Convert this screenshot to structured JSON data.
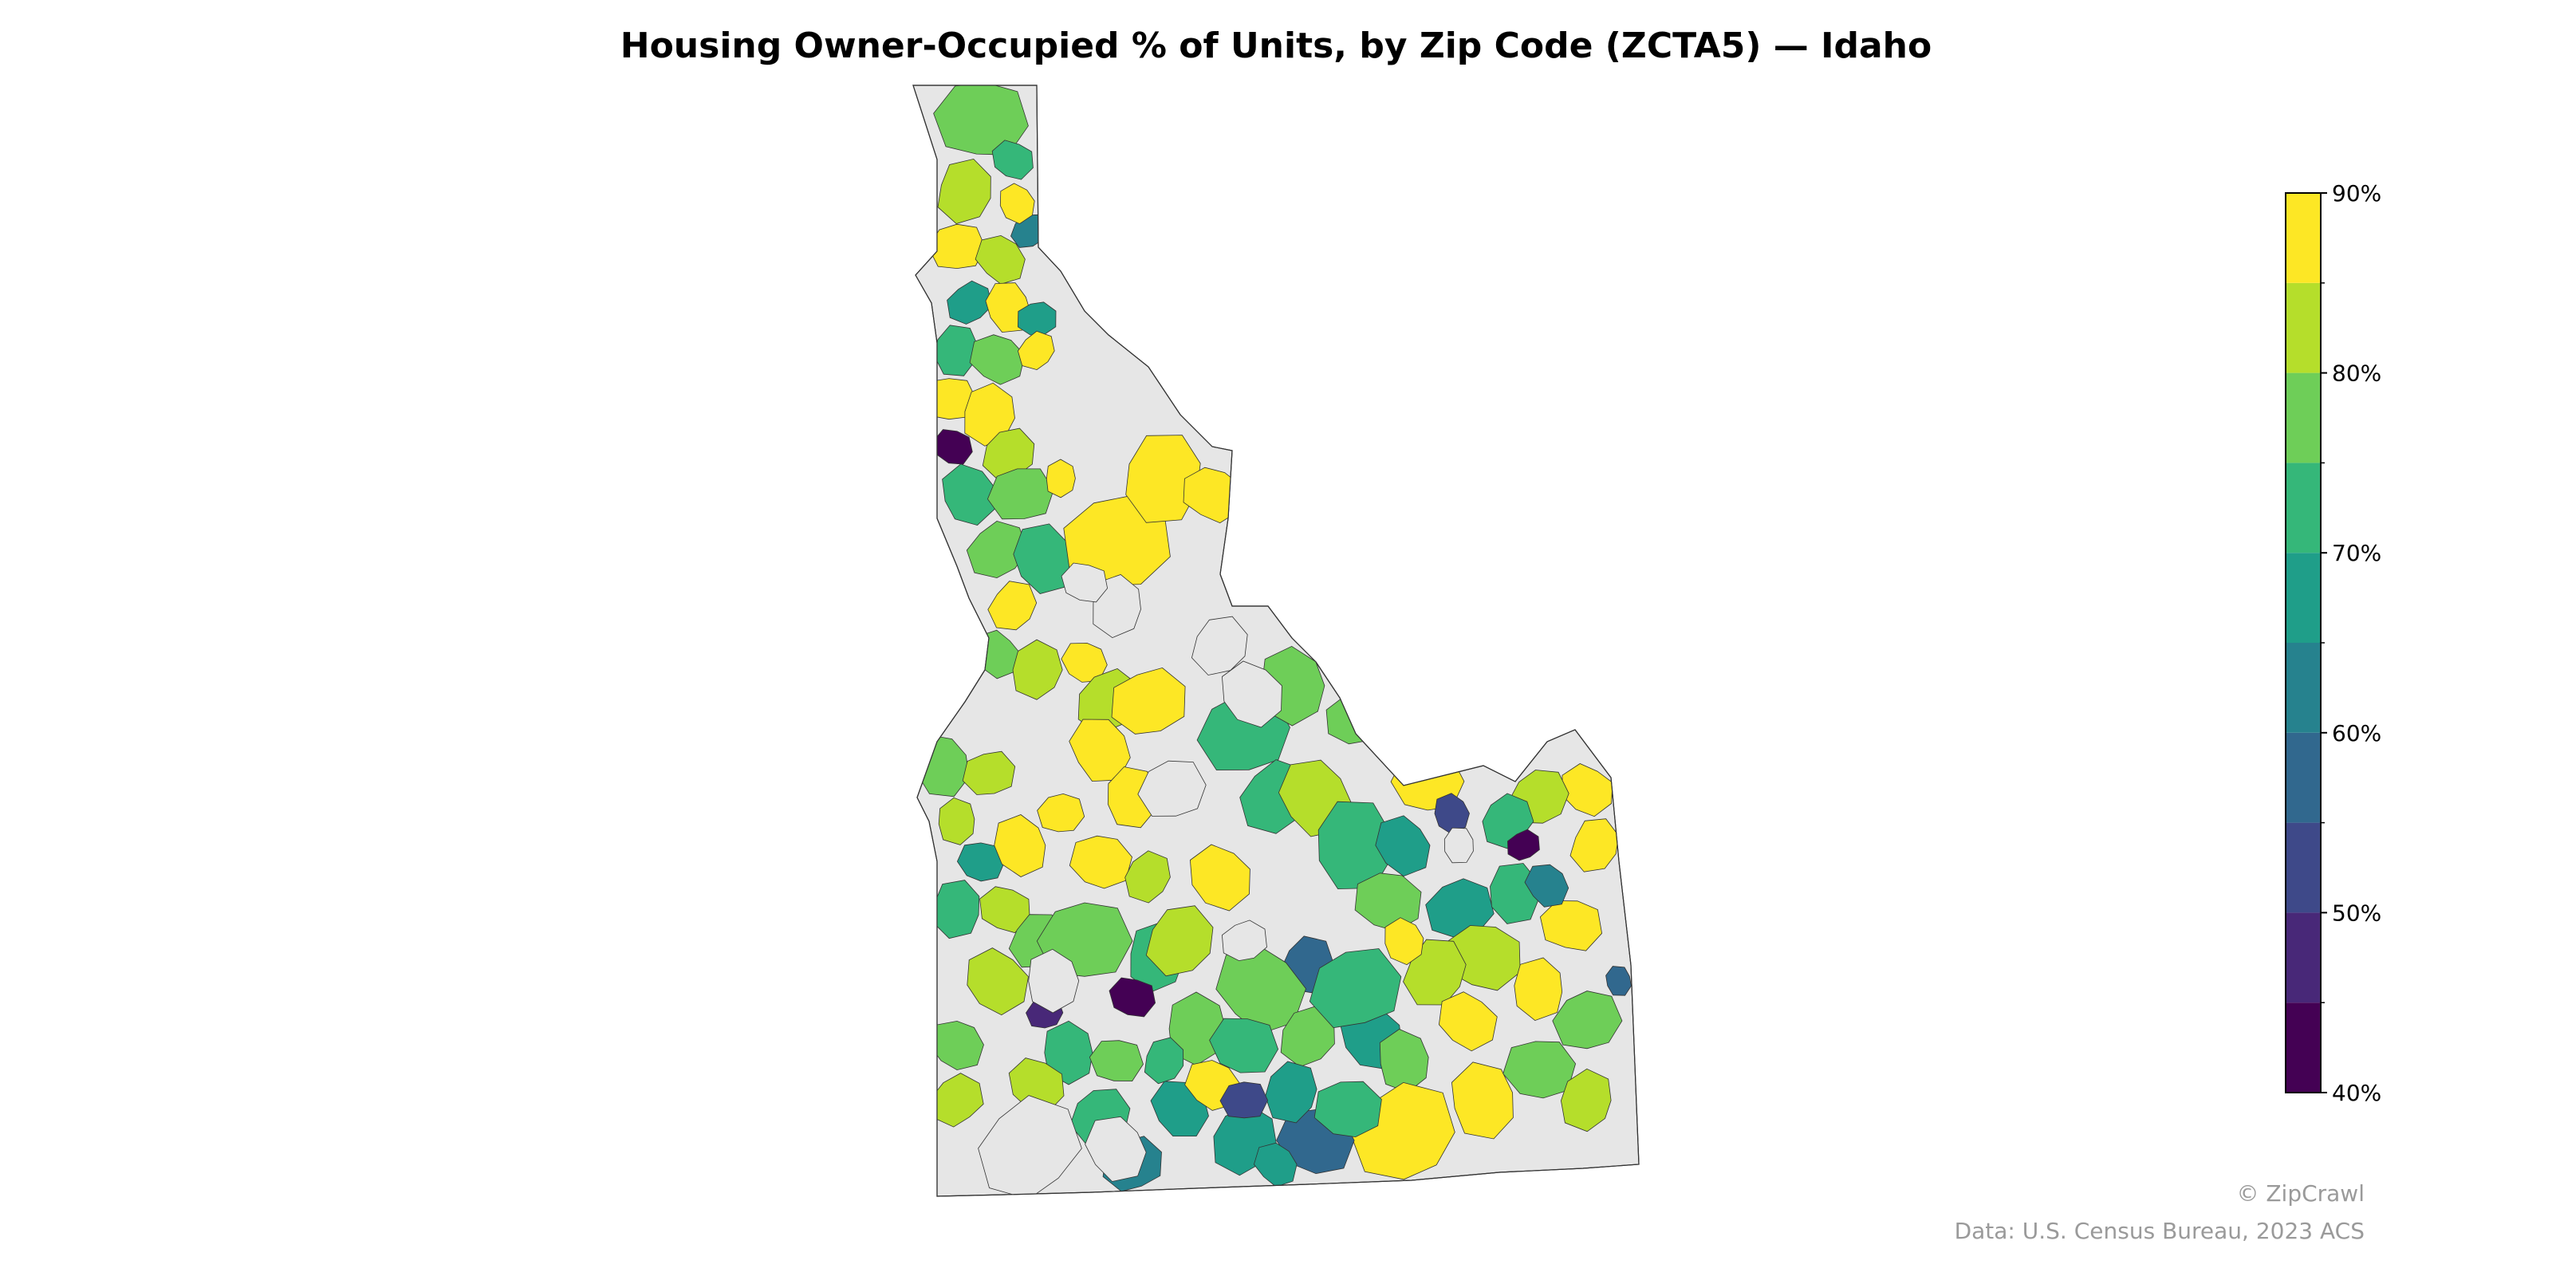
{
  "title": "Housing Owner-Occupied % of Units, by Zip Code (ZCTA5) — Idaho",
  "colorbar": {
    "tick_labels": [
      "40%",
      "50%",
      "60%",
      "70%",
      "80%",
      "90%"
    ],
    "min": 40,
    "max": 90,
    "bins": [
      {
        "from": 40,
        "to": 45,
        "color": "#440154"
      },
      {
        "from": 45,
        "to": 50,
        "color": "#482878"
      },
      {
        "from": 50,
        "to": 55,
        "color": "#3e4989"
      },
      {
        "from": 55,
        "to": 60,
        "color": "#31688e"
      },
      {
        "from": 60,
        "to": 65,
        "color": "#26828e"
      },
      {
        "from": 65,
        "to": 70,
        "color": "#1f9e89"
      },
      {
        "from": 70,
        "to": 75,
        "color": "#35b779"
      },
      {
        "from": 75,
        "to": 80,
        "color": "#6ece58"
      },
      {
        "from": 80,
        "to": 85,
        "color": "#b5de2b"
      },
      {
        "from": 85,
        "to": 90,
        "color": "#fde725"
      }
    ]
  },
  "no_data_color": "#e6e6e6",
  "credits": {
    "watermark": "© ZipCrawl",
    "source": "Data: U.S. Census Bureau, 2023 ACS"
  }
}
